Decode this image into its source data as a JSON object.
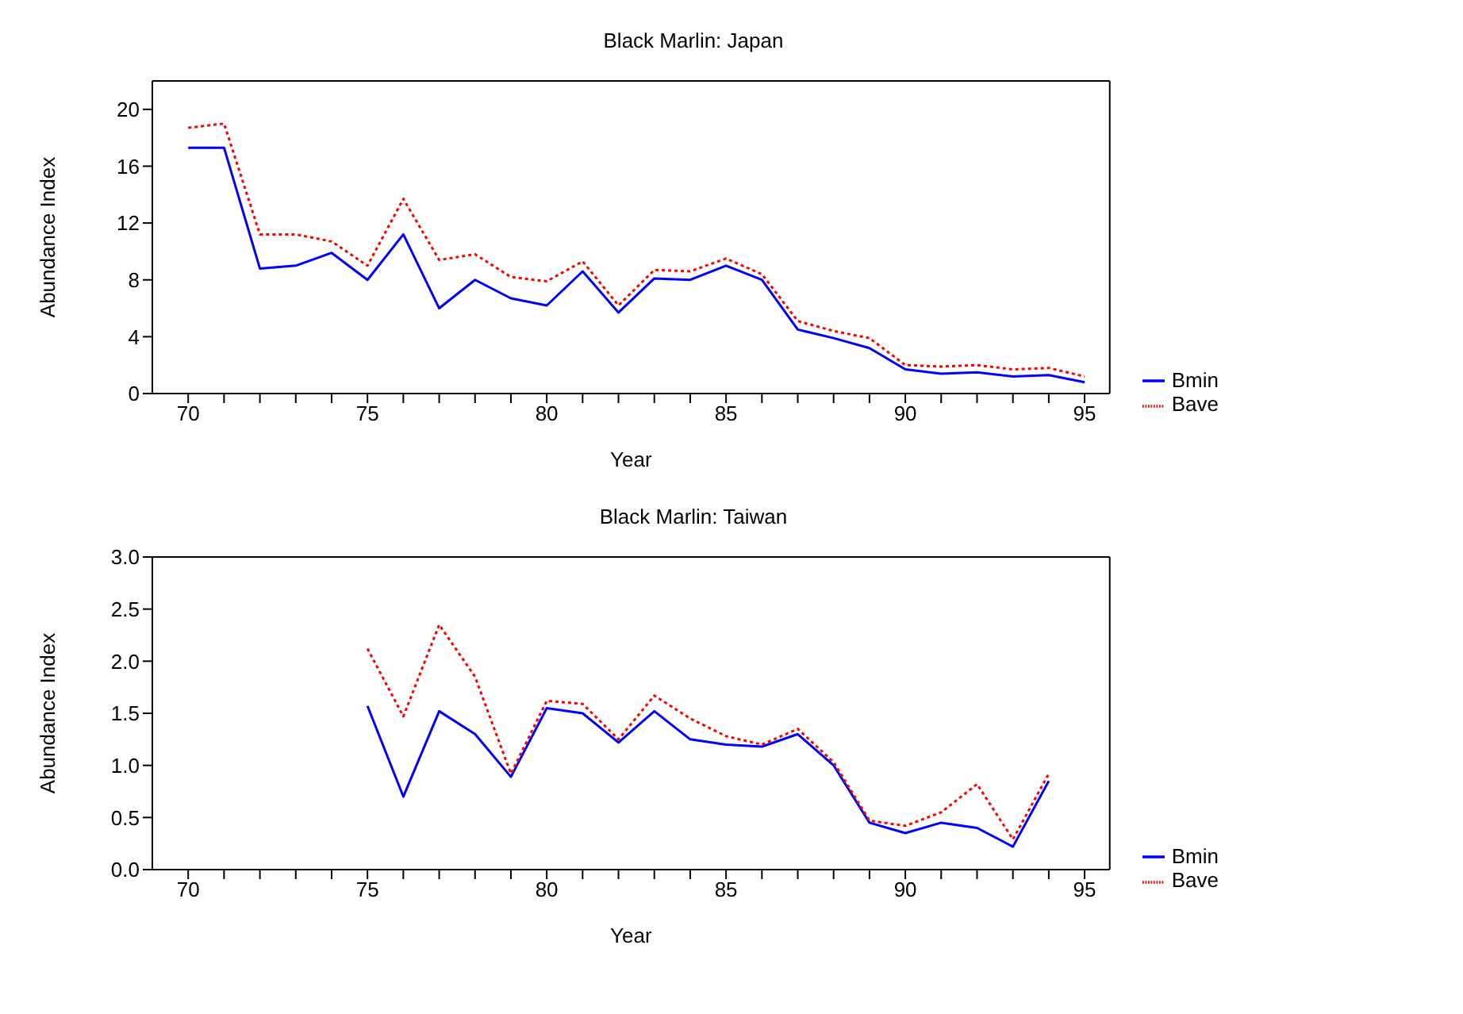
{
  "chart_data": [
    {
      "type": "line",
      "title": "Black Marlin: Japan",
      "xlabel": "Year",
      "ylabel": "Abundance Index",
      "x": [
        70,
        71,
        72,
        73,
        74,
        75,
        76,
        77,
        78,
        79,
        80,
        81,
        82,
        83,
        84,
        85,
        86,
        87,
        88,
        89,
        90,
        91,
        92,
        93,
        94,
        95
      ],
      "series": [
        {
          "name": "Bmin",
          "color": "#0000ff",
          "line_style": "solid",
          "values": [
            17.3,
            17.3,
            8.8,
            9.0,
            9.9,
            8.0,
            11.2,
            6.0,
            8.0,
            6.7,
            6.2,
            8.6,
            5.7,
            8.1,
            8.0,
            9.0,
            8.0,
            4.5,
            3.9,
            3.2,
            1.7,
            1.4,
            1.5,
            1.2,
            1.3,
            0.8
          ]
        },
        {
          "name": "Bave",
          "color": "#ff0000",
          "line_style": "dotted",
          "values": [
            18.7,
            19.0,
            11.2,
            11.2,
            10.7,
            9.0,
            13.7,
            9.4,
            9.8,
            8.2,
            7.9,
            9.3,
            6.2,
            8.7,
            8.6,
            9.5,
            8.4,
            5.1,
            4.4,
            3.9,
            2.0,
            1.9,
            2.0,
            1.7,
            1.8,
            1.2
          ]
        }
      ],
      "xlim": [
        69,
        95.7
      ],
      "xticks": [
        70,
        {
          "value": 71,
          "label": null
        },
        {
          "value": 72,
          "label": null
        },
        {
          "value": 73,
          "label": null
        },
        {
          "value": 74,
          "label": null
        },
        75,
        {
          "value": 76,
          "label": null
        },
        {
          "value": 77,
          "label": null
        },
        {
          "value": 78,
          "label": null
        },
        {
          "value": 79,
          "label": null
        },
        80,
        {
          "value": 81,
          "label": null
        },
        {
          "value": 82,
          "label": null
        },
        {
          "value": 83,
          "label": null
        },
        {
          "value": 84,
          "label": null
        },
        85,
        {
          "value": 86,
          "label": null
        },
        {
          "value": 87,
          "label": null
        },
        {
          "value": 88,
          "label": null
        },
        {
          "value": 89,
          "label": null
        },
        90,
        {
          "value": 91,
          "label": null
        },
        {
          "value": 92,
          "label": null
        },
        {
          "value": 93,
          "label": null
        },
        {
          "value": 94,
          "label": null
        },
        95
      ],
      "ylim": [
        0,
        22
      ],
      "yticks": [
        0,
        4,
        8,
        12,
        16,
        20
      ],
      "grid": false,
      "legend": "right",
      "marker": "none"
    },
    {
      "type": "line",
      "title": "Black Marlin: Taiwan",
      "xlabel": "Year",
      "ylabel": "Abundance Index",
      "x": [
        75,
        76,
        77,
        78,
        79,
        80,
        81,
        82,
        83,
        84,
        85,
        86,
        87,
        88,
        89,
        90,
        91,
        92,
        93,
        94
      ],
      "series": [
        {
          "name": "Bmin",
          "color": "#0000ff",
          "line_style": "solid",
          "values": [
            1.57,
            0.7,
            1.52,
            1.3,
            0.89,
            1.55,
            1.5,
            1.22,
            1.52,
            1.25,
            1.2,
            1.18,
            1.3,
            1.0,
            0.45,
            0.35,
            0.45,
            0.4,
            0.22,
            0.85
          ]
        },
        {
          "name": "Bave",
          "color": "#ff0000",
          "line_style": "dotted",
          "values": [
            2.12,
            1.47,
            2.35,
            1.85,
            0.92,
            1.62,
            1.59,
            1.25,
            1.67,
            1.45,
            1.28,
            1.2,
            1.35,
            1.03,
            0.47,
            0.42,
            0.55,
            0.82,
            0.29,
            0.92
          ]
        }
      ],
      "xlim": [
        69,
        95.7
      ],
      "xticks": [
        70,
        {
          "value": 71,
          "label": null
        },
        {
          "value": 72,
          "label": null
        },
        {
          "value": 73,
          "label": null
        },
        {
          "value": 74,
          "label": null
        },
        75,
        {
          "value": 76,
          "label": null
        },
        {
          "value": 77,
          "label": null
        },
        {
          "value": 78,
          "label": null
        },
        {
          "value": 79,
          "label": null
        },
        80,
        {
          "value": 81,
          "label": null
        },
        {
          "value": 82,
          "label": null
        },
        {
          "value": 83,
          "label": null
        },
        {
          "value": 84,
          "label": null
        },
        85,
        {
          "value": 86,
          "label": null
        },
        {
          "value": 87,
          "label": null
        },
        {
          "value": 88,
          "label": null
        },
        {
          "value": 89,
          "label": null
        },
        90,
        {
          "value": 91,
          "label": null
        },
        {
          "value": 92,
          "label": null
        },
        {
          "value": 93,
          "label": null
        },
        {
          "value": 94,
          "label": null
        },
        95
      ],
      "ylim": [
        0,
        3
      ],
      "yticks": [
        {
          "value": 0,
          "label": "0.0"
        },
        {
          "value": 0.5,
          "label": "0.5"
        },
        {
          "value": 1,
          "label": "1.0"
        },
        {
          "value": 1.5,
          "label": "1.5"
        },
        {
          "value": 2,
          "label": "2.0"
        },
        {
          "value": 2.5,
          "label": "2.5"
        },
        {
          "value": 3,
          "label": "3.0"
        }
      ],
      "grid": false,
      "legend": "right",
      "marker": "none"
    }
  ]
}
